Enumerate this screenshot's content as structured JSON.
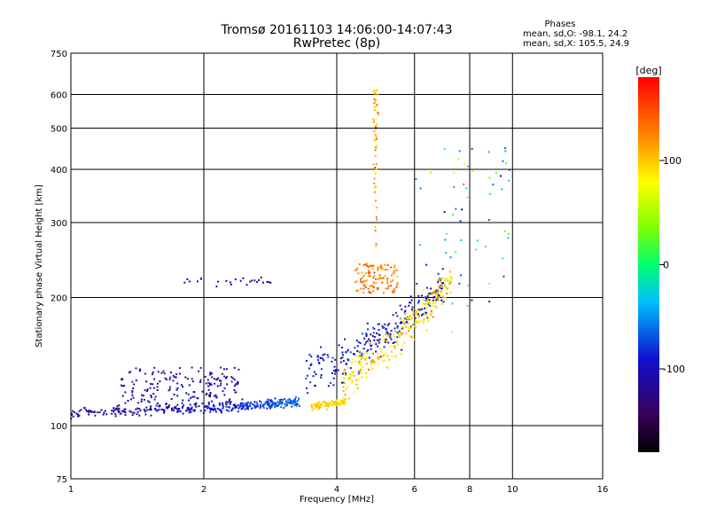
{
  "header": {
    "title_line1": "Tromsø 20161103 14:06:00-14:07:43",
    "title_line2": "RwPretec (8p)"
  },
  "info": {
    "title": "Phases",
    "o_line": "mean, sd,O: -98.1, 24.2",
    "x_line": "mean, sd,X: 105.5, 24.9"
  },
  "colorbar": {
    "unit": "[deg]",
    "ticks": [
      {
        "value": -100,
        "label": "-100"
      },
      {
        "value": 0,
        "label": "0"
      },
      {
        "value": 100,
        "label": "100"
      }
    ],
    "range": [
      -180,
      180
    ]
  },
  "chart_data": {
    "type": "scatter",
    "xlabel": "Frequency [MHz]",
    "ylabel": "Stationary phase Virtual Height [km]",
    "xscale": "log",
    "yscale": "log",
    "xlim": [
      1,
      16
    ],
    "ylim": [
      75,
      750
    ],
    "xticks": [
      1,
      2,
      4,
      6,
      8,
      10,
      16
    ],
    "yticks": [
      75,
      100,
      200,
      300,
      400,
      500,
      600,
      750
    ],
    "grid": true,
    "color_encoding": "phase in degrees (colorbar -180 to 180)",
    "points": []
  }
}
